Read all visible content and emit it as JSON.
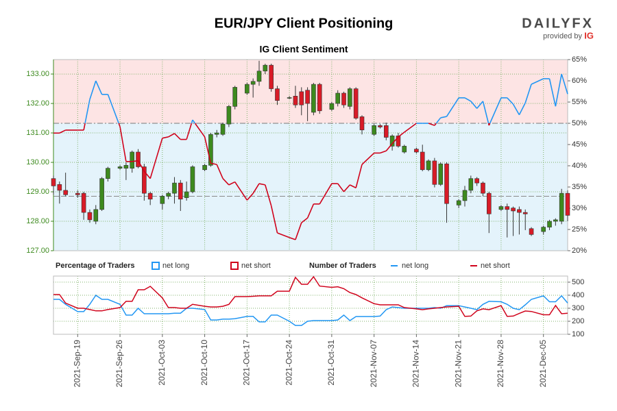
{
  "logo": {
    "name": "DAILYFX",
    "provided_by": "provided by",
    "brand": "IG"
  },
  "chart_data": [
    {
      "type": "candlestick",
      "title": "EUR/JPY Client Positioning",
      "subtitle": "IG Client Sentiment",
      "x": [
        "2021-09-15",
        "2021-09-16",
        "2021-09-17",
        "2021-09-19",
        "2021-09-20",
        "2021-09-21",
        "2021-09-22",
        "2021-09-23",
        "2021-09-24",
        "2021-09-26",
        "2021-09-27",
        "2021-09-28",
        "2021-09-29",
        "2021-09-30",
        "2021-10-01",
        "2021-10-03",
        "2021-10-04",
        "2021-10-05",
        "2021-10-06",
        "2021-10-07",
        "2021-10-08",
        "2021-10-10",
        "2021-10-11",
        "2021-10-12",
        "2021-10-13",
        "2021-10-14",
        "2021-10-15",
        "2021-10-17",
        "2021-10-18",
        "2021-10-19",
        "2021-10-20",
        "2021-10-21",
        "2021-10-22",
        "2021-10-24",
        "2021-10-25",
        "2021-10-26",
        "2021-10-27",
        "2021-10-28",
        "2021-10-29",
        "2021-10-31",
        "2021-11-01",
        "2021-11-02",
        "2021-11-03",
        "2021-11-04",
        "2021-11-05",
        "2021-11-07",
        "2021-11-08",
        "2021-11-09",
        "2021-11-10",
        "2021-11-11",
        "2021-11-12",
        "2021-11-14",
        "2021-11-15",
        "2021-11-16",
        "2021-11-17",
        "2021-11-18",
        "2021-11-19",
        "2021-11-21",
        "2021-11-22",
        "2021-11-23",
        "2021-11-24",
        "2021-11-25",
        "2021-11-26",
        "2021-11-28",
        "2021-11-29",
        "2021-11-30",
        "2021-12-01",
        "2021-12-02",
        "2021-12-03",
        "2021-12-05",
        "2021-12-06",
        "2021-12-07",
        "2021-12-08",
        "2021-12-09"
      ],
      "candles": {
        "open": [
          129.45,
          129.25,
          129.05,
          128.95,
          128.95,
          128.3,
          128.0,
          128.4,
          129.45,
          129.8,
          129.8,
          129.8,
          130.35,
          129.85,
          128.95,
          128.6,
          128.85,
          128.95,
          129.3,
          128.8,
          129.0,
          129.75,
          129.9,
          130.95,
          130.95,
          131.3,
          131.9,
          132.35,
          132.65,
          132.75,
          133.1,
          133.3,
          132.5,
          132.2,
          132.25,
          132.4,
          132.45,
          131.7,
          132.65,
          131.8,
          132.0,
          132.35,
          131.9,
          132.5,
          131.55,
          130.95,
          131.25,
          131.25,
          130.55,
          130.9,
          130.35,
          130.45,
          130.35,
          129.75,
          130.05,
          129.25,
          129.95,
          128.55,
          128.7,
          129.05,
          129.45,
          129.3,
          128.95,
          128.4,
          128.5,
          128.45,
          128.4,
          128.3,
          127.75,
          127.65,
          127.8,
          128.0,
          128.0,
          128.95
        ],
        "high": [
          129.55,
          129.35,
          129.65,
          129.05,
          129.0,
          128.4,
          128.55,
          129.5,
          129.85,
          129.9,
          130.0,
          130.4,
          130.45,
          129.95,
          129.0,
          128.9,
          129.0,
          129.5,
          129.4,
          129.35,
          129.9,
          129.95,
          131.0,
          131.1,
          131.35,
          131.95,
          132.6,
          132.7,
          132.85,
          133.45,
          133.35,
          133.35,
          132.6,
          132.25,
          132.6,
          132.55,
          132.55,
          132.7,
          132.7,
          132.05,
          132.45,
          132.4,
          132.55,
          132.55,
          131.6,
          131.3,
          131.3,
          131.35,
          130.95,
          131.0,
          130.6,
          130.5,
          130.6,
          130.1,
          130.15,
          130.0,
          130.0,
          128.75,
          129.2,
          129.55,
          129.5,
          129.35,
          129.0,
          128.55,
          128.6,
          128.5,
          128.5,
          128.4,
          127.8,
          127.85,
          128.05,
          128.1,
          129.1,
          129.05
        ],
        "low": [
          128.9,
          128.6,
          128.85,
          128.8,
          128.05,
          127.95,
          127.9,
          128.35,
          129.35,
          129.75,
          129.4,
          129.65,
          129.8,
          128.7,
          128.55,
          128.4,
          128.75,
          128.6,
          128.35,
          128.7,
          128.95,
          129.7,
          129.85,
          130.85,
          130.9,
          131.2,
          131.8,
          132.3,
          132.2,
          132.6,
          133.0,
          132.4,
          131.95,
          132.15,
          131.85,
          131.6,
          131.4,
          131.6,
          131.65,
          131.75,
          131.9,
          131.85,
          131.8,
          131.45,
          130.95,
          130.9,
          131.15,
          130.75,
          130.4,
          130.5,
          130.3,
          130.3,
          129.7,
          129.7,
          129.15,
          129.2,
          127.95,
          128.45,
          128.5,
          128.95,
          129.2,
          128.85,
          127.6,
          128.35,
          127.45,
          127.5,
          127.55,
          127.7,
          127.5,
          127.55,
          127.7,
          127.85,
          127.9,
          128.0
        ],
        "close": [
          129.2,
          129.05,
          128.9,
          128.9,
          128.3,
          128.05,
          128.4,
          129.45,
          129.8,
          129.85,
          129.9,
          130.35,
          129.85,
          128.95,
          128.75,
          128.85,
          128.95,
          129.3,
          128.75,
          129.0,
          129.85,
          129.9,
          130.95,
          131.0,
          131.3,
          131.9,
          132.55,
          132.65,
          132.75,
          133.1,
          133.3,
          132.5,
          132.1,
          132.2,
          131.95,
          131.95,
          132.0,
          132.65,
          131.75,
          132.0,
          132.35,
          131.95,
          132.5,
          131.5,
          131.1,
          131.25,
          131.2,
          130.85,
          130.9,
          130.55,
          130.55,
          130.35,
          129.75,
          130.05,
          129.25,
          129.95,
          128.6,
          128.7,
          129.05,
          129.45,
          129.3,
          128.95,
          128.25,
          128.5,
          128.4,
          128.35,
          128.3,
          128.25,
          127.55,
          127.8,
          128.0,
          128.05,
          128.95,
          128.2
        ]
      },
      "up_color": "#3d8a1e",
      "down_color": "#d81b27",
      "series": [
        {
          "axis": "y2",
          "threshold": 50,
          "values": [
            47.7,
            47.7,
            48.4,
            48.4,
            48.4,
            55.6,
            60,
            56.8,
            56.8,
            49.2,
            41,
            41,
            41.2,
            38.7,
            37,
            46.5,
            46.8,
            47.6,
            46.2,
            46.2,
            50.8,
            46.8,
            40.6,
            40.3,
            37,
            35.5,
            36.2,
            31.9,
            33.5,
            35.8,
            35.5,
            30.6,
            24.2,
            23.1,
            22.6,
            26.6,
            27.7,
            31,
            31,
            35.8,
            35.8,
            33.9,
            35.5,
            34.8,
            40.3,
            43,
            43,
            43.5,
            45.2,
            46.8,
            47.9,
            50,
            50,
            50,
            49.5,
            51.3,
            51.6,
            56,
            56,
            55.2,
            53.5,
            55.2,
            49.5,
            56,
            56,
            54.5,
            52,
            54.8,
            59.2,
            60.5,
            60.5,
            54,
            61.6,
            56.9
          ]
        }
      ],
      "legend": {
        "title": "Percentage of Traders",
        "entries": [
          {
            "name": "net long",
            "color": "#2196f3"
          },
          {
            "name": "net short",
            "color": "#d0021b"
          }
        ]
      },
      "hlines": [
        {
          "value": 128.85
        }
      ],
      "xlim": [
        "2021-09-15",
        "2021-12-09"
      ],
      "xticks": [
        "2021-09-19",
        "2021-09-26",
        "2021-10-03",
        "2021-10-10",
        "2021-10-17",
        "2021-10-24",
        "2021-10-31",
        "2021-11-07",
        "2021-11-14",
        "2021-11-21",
        "2021-11-28",
        "2021-12-05"
      ],
      "ylim": [
        127,
        133.49
      ],
      "yticks": [
        {
          "value": 127,
          "label": "127.00"
        },
        {
          "value": 128,
          "label": "128.00"
        },
        {
          "value": 129,
          "label": "129.00"
        },
        {
          "value": 130,
          "label": "130.00"
        },
        {
          "value": 131,
          "label": "131.00"
        },
        {
          "value": 132,
          "label": "132.00"
        },
        {
          "value": 133,
          "label": "133.00"
        }
      ],
      "y2lim": [
        20,
        65
      ],
      "y2ticks": [
        {
          "value": 20,
          "label": "20%"
        },
        {
          "value": 25,
          "label": "25%"
        },
        {
          "value": 30,
          "label": "30%"
        },
        {
          "value": 35,
          "label": "35%"
        },
        {
          "value": 40,
          "label": "40%"
        },
        {
          "value": 45,
          "label": "45%"
        },
        {
          "value": 50,
          "label": "50%"
        },
        {
          "value": 55,
          "label": "55%"
        },
        {
          "value": 60,
          "label": "60%"
        },
        {
          "value": 65,
          "label": "65%"
        }
      ],
      "grid": true
    },
    {
      "type": "line",
      "legend_title": "Number of Traders",
      "x": [
        "2021-09-15",
        "2021-09-16",
        "2021-09-17",
        "2021-09-19",
        "2021-09-20",
        "2021-09-21",
        "2021-09-22",
        "2021-09-23",
        "2021-09-24",
        "2021-09-26",
        "2021-09-27",
        "2021-09-28",
        "2021-09-29",
        "2021-09-30",
        "2021-10-01",
        "2021-10-03",
        "2021-10-04",
        "2021-10-05",
        "2021-10-06",
        "2021-10-07",
        "2021-10-08",
        "2021-10-10",
        "2021-10-11",
        "2021-10-12",
        "2021-10-13",
        "2021-10-14",
        "2021-10-15",
        "2021-10-17",
        "2021-10-18",
        "2021-10-19",
        "2021-10-20",
        "2021-10-21",
        "2021-10-22",
        "2021-10-24",
        "2021-10-25",
        "2021-10-26",
        "2021-10-27",
        "2021-10-28",
        "2021-10-29",
        "2021-10-31",
        "2021-11-01",
        "2021-11-02",
        "2021-11-03",
        "2021-11-04",
        "2021-11-05",
        "2021-11-07",
        "2021-11-08",
        "2021-11-09",
        "2021-11-10",
        "2021-11-11",
        "2021-11-12",
        "2021-11-14",
        "2021-11-15",
        "2021-11-16",
        "2021-11-17",
        "2021-11-18",
        "2021-11-19",
        "2021-11-21",
        "2021-11-22",
        "2021-11-23",
        "2021-11-24",
        "2021-11-25",
        "2021-11-26",
        "2021-11-28",
        "2021-11-29",
        "2021-11-30",
        "2021-12-01",
        "2021-12-02",
        "2021-12-03",
        "2021-12-05",
        "2021-12-06",
        "2021-12-07",
        "2021-12-08",
        "2021-12-09"
      ],
      "series": [
        {
          "name": "net long",
          "color": "#2196f3",
          "values": [
            368,
            368,
            330,
            274,
            274,
            330,
            400,
            368,
            368,
            330,
            247,
            247,
            300,
            258,
            258,
            258,
            258,
            262,
            262,
            300,
            300,
            290,
            210,
            210,
            216,
            216,
            220,
            237,
            237,
            195,
            195,
            247,
            247,
            200,
            168,
            168,
            200,
            205,
            205,
            205,
            210,
            247,
            205,
            236,
            236,
            236,
            240,
            289,
            310,
            305,
            300,
            300,
            300,
            300,
            305,
            300,
            320,
            320,
            310,
            300,
            289,
            330,
            353,
            350,
            330,
            300,
            289,
            326,
            368,
            395,
            350,
            350,
            395,
            340
          ]
        },
        {
          "name": "net short",
          "color": "#d0021b",
          "values": [
            405,
            405,
            340,
            300,
            300,
            290,
            280,
            280,
            290,
            305,
            353,
            353,
            442,
            442,
            468,
            380,
            305,
            305,
            300,
            300,
            330,
            315,
            310,
            310,
            315,
            330,
            389,
            389,
            392,
            395,
            395,
            395,
            431,
            431,
            537,
            484,
            484,
            542,
            470,
            460,
            465,
            450,
            420,
            405,
            380,
            335,
            326,
            326,
            326,
            326,
            305,
            295,
            289,
            295,
            300,
            305,
            310,
            315,
            237,
            240,
            280,
            295,
            289,
            320,
            237,
            240,
            260,
            279,
            275,
            250,
            250,
            321,
            258,
            262
          ]
        }
      ],
      "xlim": [
        "2021-09-15",
        "2021-12-09"
      ],
      "xticks": [
        {
          "value": "2021-09-19",
          "label": "2021-Sep-19"
        },
        {
          "value": "2021-09-26",
          "label": "2021-Sep-26"
        },
        {
          "value": "2021-10-03",
          "label": "2021-Oct-03"
        },
        {
          "value": "2021-10-10",
          "label": "2021-Oct-10"
        },
        {
          "value": "2021-10-17",
          "label": "2021-Oct-17"
        },
        {
          "value": "2021-10-24",
          "label": "2021-Oct-24"
        },
        {
          "value": "2021-10-31",
          "label": "2021-Oct-31"
        },
        {
          "value": "2021-11-07",
          "label": "2021-Nov-07"
        },
        {
          "value": "2021-11-14",
          "label": "2021-Nov-14"
        },
        {
          "value": "2021-11-21",
          "label": "2021-Nov-21"
        },
        {
          "value": "2021-11-28",
          "label": "2021-Nov-28"
        },
        {
          "value": "2021-12-05",
          "label": "2021-Dec-05"
        }
      ],
      "ylim": [
        100,
        547
      ],
      "yticks": [
        100,
        200,
        300,
        400,
        500
      ],
      "grid": true
    }
  ]
}
